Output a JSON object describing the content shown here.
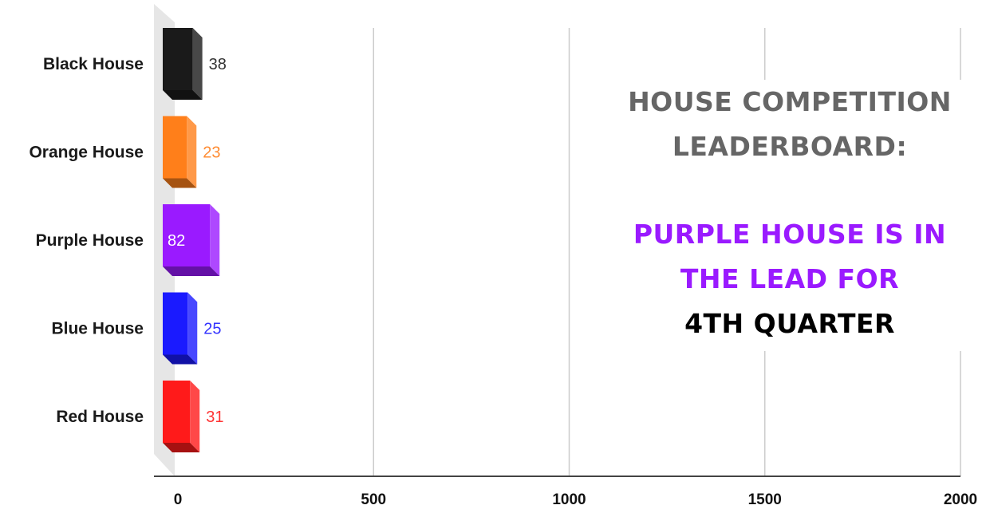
{
  "chart_data": {
    "type": "bar",
    "orientation": "horizontal",
    "categories": [
      "Black House",
      "Orange House",
      "Purple House",
      "Blue House",
      "Red House"
    ],
    "values": [
      38,
      23,
      82,
      25,
      31
    ],
    "colors": [
      "#1a1a1a",
      "#ff7f1a",
      "#9a1aff",
      "#1a1aff",
      "#ff1a1a"
    ],
    "label_colors": [
      "#333333",
      "#ff8c33",
      "#ffffff",
      "#3333ff",
      "#ff3333"
    ],
    "xlim": [
      0,
      2000
    ],
    "xticks": [
      0,
      500,
      1000,
      1500,
      2000
    ],
    "grid": true,
    "style": "3d"
  },
  "annotation": {
    "heading_line1": "HOUSE COMPETITION",
    "heading_line2": "LEADERBOARD:",
    "lead_line1": "PURPLE HOUSE IS IN",
    "lead_line2": "THE LEAD FOR",
    "lead_line3": "4TH QUARTER",
    "heading_color": "#666666",
    "lead_color": "#9a1aff",
    "quarter_color": "#000000"
  }
}
